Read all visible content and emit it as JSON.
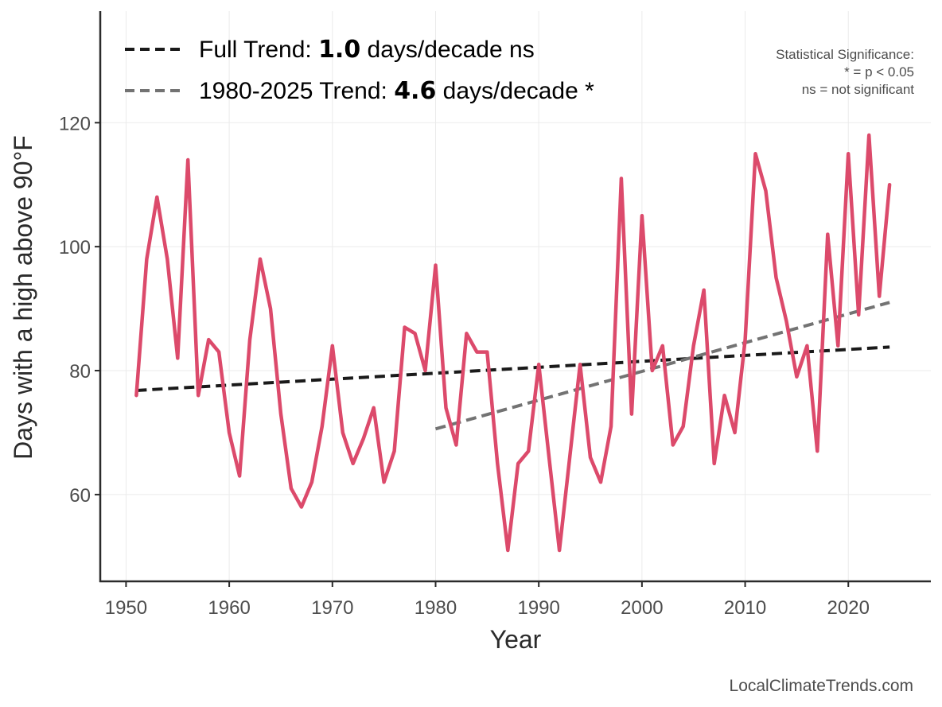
{
  "chart_data": {
    "type": "line",
    "title": "",
    "xlabel": "Year",
    "ylabel": "Days with a high above 90°F",
    "xlim": [
      1947.5,
      2028
    ],
    "ylim": [
      46,
      138
    ],
    "xticks": [
      1950,
      1960,
      1970,
      1980,
      1990,
      2000,
      2010,
      2020
    ],
    "yticks": [
      60,
      80,
      100,
      120
    ],
    "grid": true,
    "series": [
      {
        "name": "Days with a high above 90°F",
        "color": "#dc4a6b",
        "x": [
          1951,
          1952,
          1953,
          1954,
          1955,
          1956,
          1957,
          1958,
          1959,
          1960,
          1961,
          1962,
          1963,
          1964,
          1965,
          1966,
          1967,
          1968,
          1969,
          1970,
          1971,
          1972,
          1973,
          1974,
          1975,
          1976,
          1977,
          1978,
          1979,
          1980,
          1981,
          1982,
          1983,
          1984,
          1985,
          1986,
          1987,
          1988,
          1989,
          1990,
          1991,
          1992,
          1993,
          1994,
          1995,
          1996,
          1997,
          1998,
          1999,
          2000,
          2001,
          2002,
          2003,
          2004,
          2005,
          2006,
          2007,
          2008,
          2009,
          2010,
          2011,
          2012,
          2013,
          2014,
          2015,
          2016,
          2017,
          2018,
          2019,
          2020,
          2021,
          2022,
          2023,
          2024
        ],
        "values": [
          76,
          98,
          108,
          98,
          82,
          114,
          76,
          85,
          83,
          70,
          63,
          85,
          98,
          90,
          73,
          61,
          58,
          62,
          71,
          84,
          70,
          65,
          69,
          74,
          62,
          67,
          87,
          86,
          80,
          97,
          74,
          68,
          86,
          83,
          83,
          65,
          51,
          65,
          67,
          81,
          66,
          51,
          66,
          81,
          66,
          62,
          71,
          111,
          73,
          105,
          80,
          84,
          68,
          71,
          84,
          93,
          65,
          76,
          70,
          85,
          115,
          109,
          95,
          88,
          79,
          84,
          67,
          102,
          84,
          115,
          89,
          118,
          92,
          110
        ]
      }
    ],
    "trend_lines": [
      {
        "name": "Full Trend",
        "color": "#1a1a1a",
        "x": [
          1951,
          2024
        ],
        "y": [
          76.8,
          83.8
        ]
      },
      {
        "name": "1980-2025 Trend",
        "color": "#737373",
        "x": [
          1980,
          2024
        ],
        "y": [
          70.6,
          91.0
        ]
      }
    ],
    "legend": {
      "position": "top-left",
      "entries": [
        {
          "prefix": "Full Trend: ",
          "value": "1.0",
          "suffix": " days/decade ns",
          "color": "#1a1a1a"
        },
        {
          "prefix": "1980-2025 Trend: ",
          "value": "4.6",
          "suffix": " days/decade *",
          "color": "#737373"
        }
      ]
    },
    "annotation": {
      "position": "top-right",
      "lines": [
        "Statistical Significance:",
        "* = p < 0.05",
        "ns = not significant"
      ]
    },
    "credit": "LocalClimateTrends.com"
  }
}
